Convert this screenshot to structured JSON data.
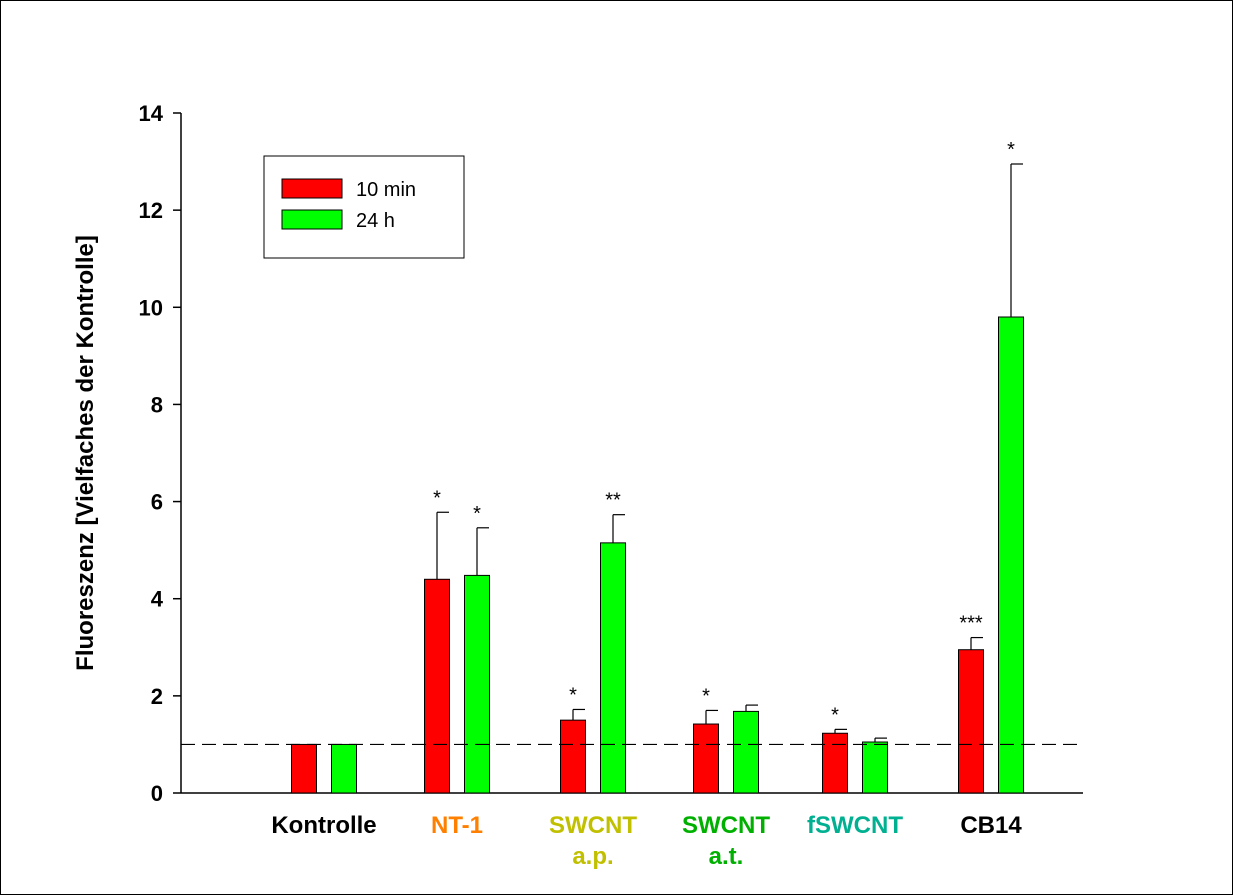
{
  "chart_data": {
    "type": "bar",
    "ylabel": "Fluoreszenz [Vielfaches der Kontrolle]",
    "xlabel": "",
    "ylim": [
      0,
      14
    ],
    "yticks": [
      0,
      2,
      4,
      6,
      8,
      10,
      12,
      14
    ],
    "grid": false,
    "legend_position": "top-left",
    "reference_line": 1,
    "categories": [
      {
        "lines": [
          "Kontrolle"
        ],
        "color": "#000000"
      },
      {
        "lines": [
          "NT-1"
        ],
        "color": "#ff8000"
      },
      {
        "lines": [
          "SWCNT",
          "a.p."
        ],
        "color": "#c0c000"
      },
      {
        "lines": [
          "SWCNT",
          "a.t."
        ],
        "color": "#00b000"
      },
      {
        "lines": [
          "fSWCNT"
        ],
        "color": "#00b090"
      },
      {
        "lines": [
          "CB14"
        ],
        "color": "#000000"
      }
    ],
    "series": [
      {
        "name": "10 min",
        "color": "#ff0000",
        "values": [
          1.0,
          4.4,
          1.5,
          1.42,
          1.23,
          2.95
        ],
        "errors": [
          0,
          1.38,
          0.22,
          0.28,
          0.08,
          0.25
        ],
        "significance": [
          "",
          "*",
          "*",
          "*",
          "*",
          "***"
        ]
      },
      {
        "name": "24 h",
        "color": "#00ff00",
        "values": [
          1.0,
          4.48,
          5.15,
          1.68,
          1.05,
          9.8
        ],
        "errors": [
          0,
          0.98,
          0.58,
          0.13,
          0.08,
          3.15
        ],
        "significance": [
          "",
          "*",
          "**",
          "",
          "",
          "*"
        ]
      }
    ]
  }
}
